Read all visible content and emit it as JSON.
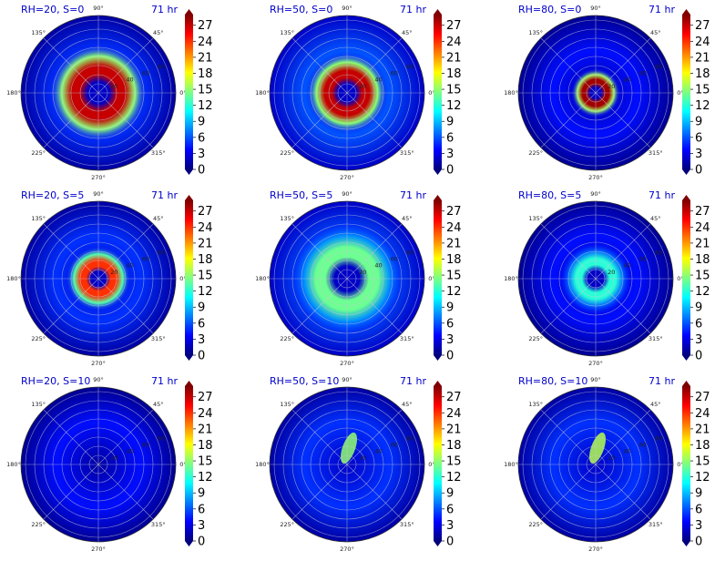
{
  "colors": {
    "jet": [
      "#00007f",
      "#0000ff",
      "#007fff",
      "#00ffff",
      "#7fff7f",
      "#ffff00",
      "#ff7f00",
      "#ff0000",
      "#7f0000"
    ],
    "title": "#0000cc",
    "grid": "#c8c8d8"
  },
  "chart_data": [
    {
      "type": "heatmap",
      "projection": "polar",
      "title": "RH=20, S=0",
      "time_label": "71 hr",
      "angle_ticks": [
        "90°",
        "45°",
        "0°",
        "315°",
        "270°",
        "225°",
        "180°",
        "135°"
      ],
      "radial_ticks": [
        "20",
        "40",
        "60",
        "80"
      ],
      "colorbar_ticks": [
        "27",
        "24",
        "21",
        "18",
        "15",
        "12",
        "9",
        "6",
        "3",
        "0"
      ],
      "clim": [
        0,
        29
      ],
      "core": {
        "value": 27,
        "radius_frac": 0.12
      },
      "grid": true
    },
    {
      "type": "heatmap",
      "projection": "polar",
      "title": "RH=50, S=0",
      "time_label": "71 hr",
      "angle_ticks": [
        "90°",
        "45°",
        "0°",
        "315°",
        "270°",
        "225°",
        "180°",
        "135°"
      ],
      "radial_ticks": [
        "20",
        "40",
        "60",
        "80"
      ],
      "colorbar_ticks": [
        "27",
        "24",
        "21",
        "18",
        "15",
        "12",
        "9",
        "6",
        "3",
        "0"
      ],
      "clim": [
        0,
        29
      ],
      "core": {
        "value": 27,
        "radius_frac": 0.1
      },
      "grid": true
    },
    {
      "type": "heatmap",
      "projection": "polar",
      "title": "RH=80, S=0",
      "time_label": "71 hr",
      "angle_ticks": [
        "90°",
        "45°",
        "0°",
        "315°",
        "270°",
        "225°",
        "180°",
        "135°"
      ],
      "radial_ticks": [
        "20",
        "40",
        "60",
        "80"
      ],
      "colorbar_ticks": [
        "27",
        "24",
        "21",
        "18",
        "15",
        "12",
        "9",
        "6",
        "3",
        "0"
      ],
      "clim": [
        0,
        29
      ],
      "core": {
        "value": 28,
        "radius_frac": 0.06
      },
      "grid": true
    },
    {
      "type": "heatmap",
      "projection": "polar",
      "title": "RH=20, S=5",
      "time_label": "71 hr",
      "angle_ticks": [
        "90°",
        "45°",
        "0°",
        "315°",
        "270°",
        "225°",
        "180°",
        "135°"
      ],
      "radial_ticks": [
        "20",
        "40",
        "60",
        "80"
      ],
      "colorbar_ticks": [
        "27",
        "24",
        "21",
        "18",
        "15",
        "12",
        "9",
        "6",
        "3",
        "0"
      ],
      "clim": [
        0,
        29
      ],
      "core": {
        "value": 24,
        "radius_frac": 0.08
      },
      "grid": true
    },
    {
      "type": "heatmap",
      "projection": "polar",
      "title": "RH=50, S=5",
      "time_label": "71 hr",
      "angle_ticks": [
        "90°",
        "45°",
        "0°",
        "315°",
        "270°",
        "225°",
        "180°",
        "135°"
      ],
      "radial_ticks": [
        "20",
        "40",
        "60",
        "80"
      ],
      "colorbar_ticks": [
        "27",
        "24",
        "21",
        "18",
        "15",
        "12",
        "9",
        "6",
        "3",
        "0"
      ],
      "clim": [
        0,
        29
      ],
      "core": {
        "value": 14,
        "radius_frac": 0.14
      },
      "grid": true
    },
    {
      "type": "heatmap",
      "projection": "polar",
      "title": "RH=80, S=5",
      "time_label": "71 hr",
      "angle_ticks": [
        "90°",
        "45°",
        "0°",
        "315°",
        "270°",
        "225°",
        "180°",
        "135°"
      ],
      "radial_ticks": [
        "20",
        "40",
        "60",
        "80"
      ],
      "colorbar_ticks": [
        "27",
        "24",
        "21",
        "18",
        "15",
        "12",
        "9",
        "6",
        "3",
        "0"
      ],
      "clim": [
        0,
        29
      ],
      "core": {
        "value": 12,
        "radius_frac": 0.09
      },
      "grid": true
    },
    {
      "type": "heatmap",
      "projection": "polar",
      "title": "RH=20, S=10",
      "time_label": "71 hr",
      "angle_ticks": [
        "90°",
        "45°",
        "0°",
        "315°",
        "270°",
        "225°",
        "180°",
        "135°"
      ],
      "radial_ticks": [
        "20",
        "40",
        "60",
        "80"
      ],
      "colorbar_ticks": [
        "27",
        "24",
        "21",
        "18",
        "15",
        "12",
        "9",
        "6",
        "3",
        "0"
      ],
      "clim": [
        0,
        29
      ],
      "core": {
        "value": 4,
        "radius_frac": 0.0
      },
      "grid": true
    },
    {
      "type": "heatmap",
      "projection": "polar",
      "title": "RH=50, S=10",
      "time_label": "71 hr",
      "angle_ticks": [
        "90°",
        "45°",
        "0°",
        "315°",
        "270°",
        "225°",
        "180°",
        "135°"
      ],
      "radial_ticks": [
        "20",
        "40",
        "60",
        "80"
      ],
      "colorbar_ticks": [
        "27",
        "24",
        "21",
        "18",
        "15",
        "12",
        "9",
        "6",
        "3",
        "0"
      ],
      "clim": [
        0,
        29
      ],
      "core": {
        "value": 15,
        "radius_frac": 0.0
      },
      "grid": true
    },
    {
      "type": "heatmap",
      "projection": "polar",
      "title": "RH=80, S=10",
      "time_label": "71 hr",
      "angle_ticks": [
        "90°",
        "45°",
        "0°",
        "315°",
        "270°",
        "225°",
        "180°",
        "135°"
      ],
      "radial_ticks": [
        "20",
        "40",
        "60",
        "80"
      ],
      "colorbar_ticks": [
        "27",
        "24",
        "21",
        "18",
        "15",
        "12",
        "9",
        "6",
        "3",
        "0"
      ],
      "clim": [
        0,
        29
      ],
      "core": {
        "value": 16,
        "radius_frac": 0.0
      },
      "grid": true
    }
  ]
}
